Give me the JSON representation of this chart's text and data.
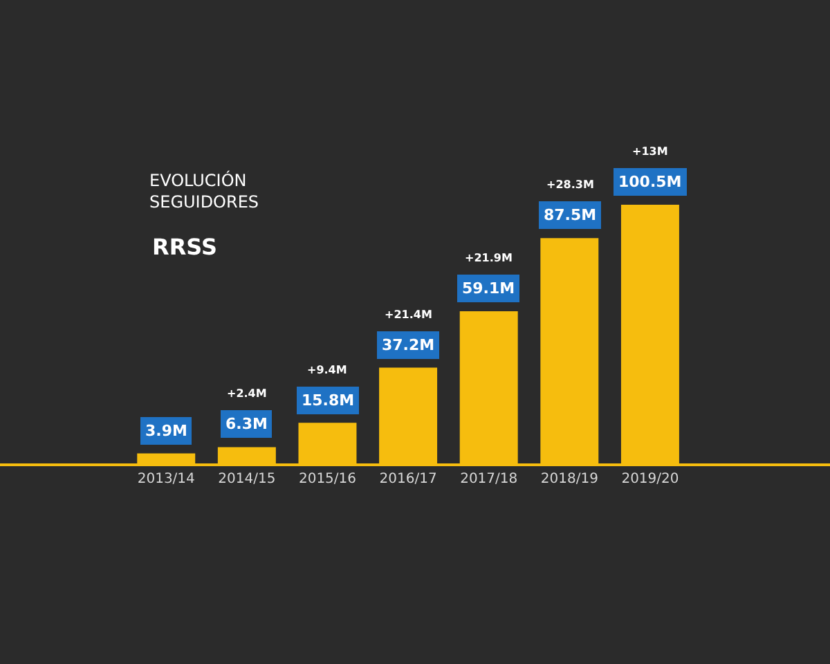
{
  "chart_data": {
    "type": "bar",
    "title": "EVOLUCIÓN SEGUIDORES",
    "subtitle": "RRSS",
    "categories": [
      "2013/14",
      "2014/15",
      "2015/16",
      "2016/17",
      "2017/18",
      "2018/19",
      "2019/20"
    ],
    "values": [
      3.9,
      6.3,
      15.8,
      37.2,
      59.1,
      87.5,
      100.5
    ],
    "value_labels": [
      "3.9M",
      "6.3M",
      "15.8M",
      "37.2M",
      "59.1M",
      "87.5M",
      "100.5M"
    ],
    "color": "#f6bd0e",
    "annotations": [
      "+2.4M",
      "+9.4M",
      "+21.4M",
      "+21.9M",
      "+28.3M",
      "+13M"
    ],
    "grid": false,
    "legend": false
  }
}
